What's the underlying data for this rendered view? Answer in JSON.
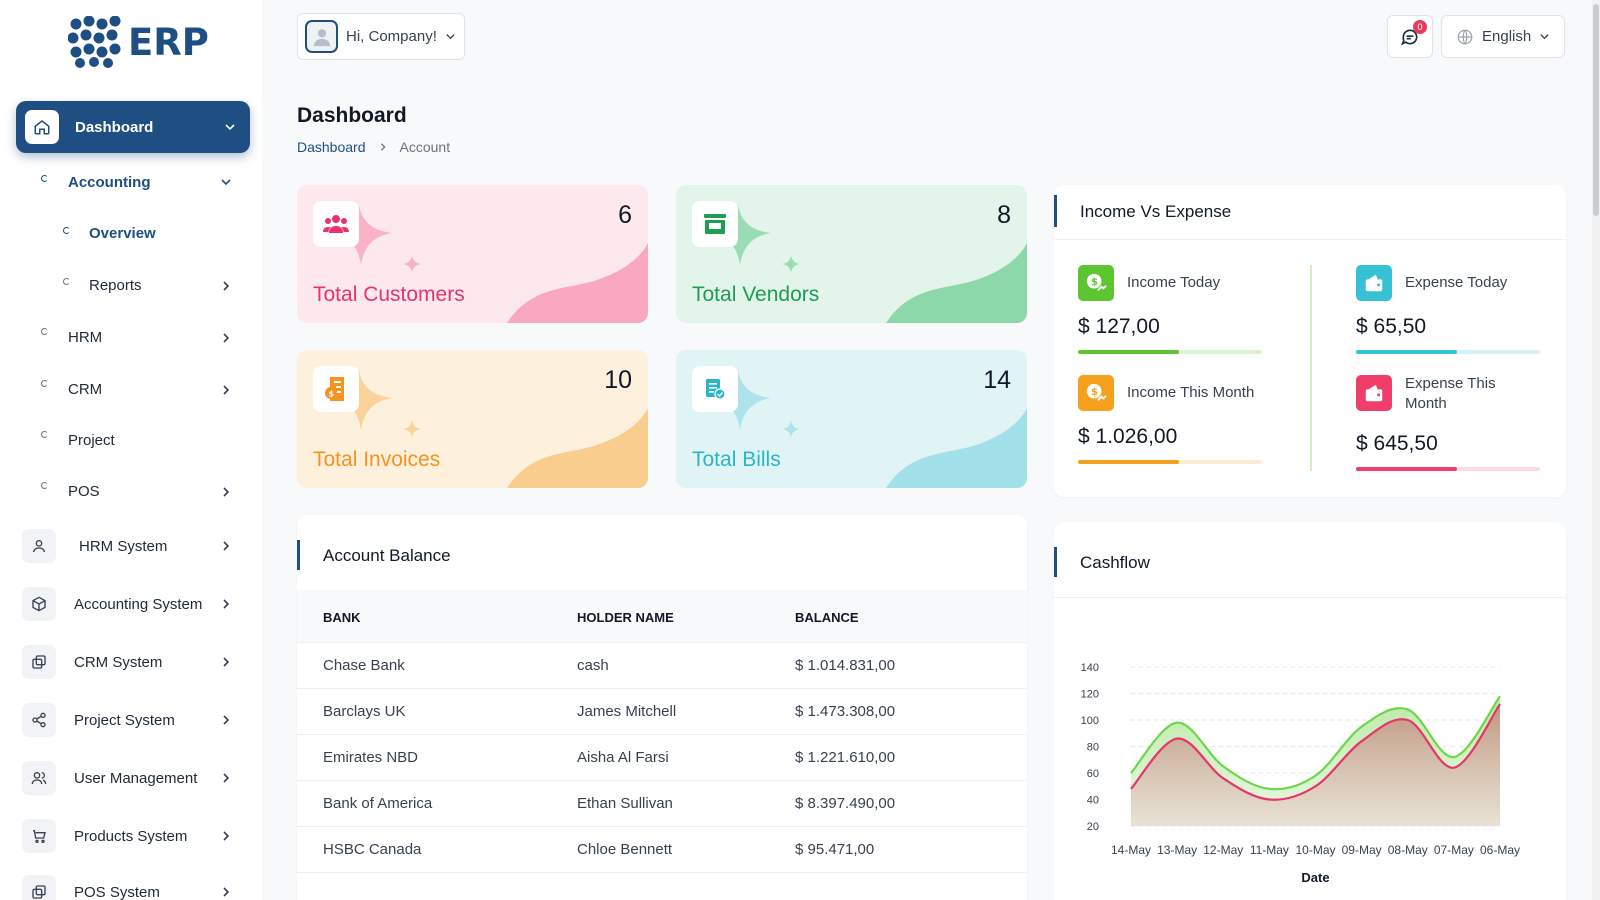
{
  "app": {
    "logo_text": "ERP"
  },
  "sidebar": {
    "active": {
      "label": "Dashboard"
    },
    "sub_items": [
      {
        "label": "Accounting",
        "level": 1,
        "has_chevron": "down"
      },
      {
        "label": "Overview",
        "level": 2
      },
      {
        "label": "Reports",
        "level": 2,
        "has_chevron": "right"
      },
      {
        "label": "HRM",
        "level": 1,
        "has_chevron": "right"
      },
      {
        "label": "CRM",
        "level": 1,
        "has_chevron": "right"
      },
      {
        "label": "Project",
        "level": 1
      },
      {
        "label": "POS",
        "level": 1,
        "has_chevron": "right"
      }
    ],
    "systems": [
      {
        "label": "HRM System",
        "icon": "user-icon"
      },
      {
        "label": "Accounting System",
        "icon": "box-icon"
      },
      {
        "label": "CRM System",
        "icon": "copy-icon"
      },
      {
        "label": "Project System",
        "icon": "share-icon"
      },
      {
        "label": "User Management",
        "icon": "users-icon"
      },
      {
        "label": "Products System",
        "icon": "cart-icon"
      },
      {
        "label": "POS System",
        "icon": "copy-icon"
      }
    ]
  },
  "topbar": {
    "greeting": "Hi, Company!",
    "notification_count": "0",
    "language": "English"
  },
  "page": {
    "title": "Dashboard",
    "breadcrumb": [
      "Dashboard",
      "Account"
    ]
  },
  "stats": [
    {
      "label": "Total Customers",
      "value": "6",
      "color": "#e8336b",
      "bg": "#fde8ee",
      "wave": "#f9a8c0",
      "icon": "customers-icon"
    },
    {
      "label": "Total Vendors",
      "value": "8",
      "color": "#1f9d55",
      "bg": "#e3f4ea",
      "wave": "#8dd8aa",
      "icon": "store-icon"
    },
    {
      "label": "Total Invoices",
      "value": "10",
      "color": "#f6921e",
      "bg": "#fdf0dd",
      "wave": "#f9cd8e",
      "icon": "invoice-icon"
    },
    {
      "label": "Total Bills",
      "value": "14",
      "color": "#2bb5c6",
      "bg": "#e0f4f6",
      "wave": "#a3e1ea",
      "icon": "bill-icon"
    }
  ],
  "income_expense": {
    "title": "Income Vs Expense",
    "items": [
      {
        "label": "Income Today",
        "value": "$ 127,00",
        "color": "#5cc531",
        "track": "#dff2d6",
        "progress": 0.55
      },
      {
        "label": "Expense Today",
        "value": "$ 65,50",
        "color": "#36c2d4",
        "track": "#d9f1f5",
        "progress": 0.55
      },
      {
        "label": "Income This Month",
        "value": "$ 1.026,00",
        "color": "#f6a11e",
        "track": "#fdecd3",
        "progress": 0.55
      },
      {
        "label": "Expense This Month",
        "value": "$ 645,50",
        "color": "#ef3e6a",
        "track": "#fbdbe3",
        "progress": 0.55
      }
    ]
  },
  "account_balance": {
    "title": "Account Balance",
    "columns": [
      "BANK",
      "HOLDER NAME",
      "BALANCE"
    ],
    "rows": [
      [
        "Chase Bank",
        "cash",
        "$ 1.014.831,00"
      ],
      [
        "Barclays UK",
        "James Mitchell",
        "$ 1.473.308,00"
      ],
      [
        "Emirates NBD",
        "Aisha Al Farsi",
        "$ 1.221.610,00"
      ],
      [
        "Bank of America",
        "Ethan Sullivan",
        "$ 8.397.490,00"
      ],
      [
        "HSBC Canada",
        "Chloe Bennett",
        "$ 95.471,00"
      ]
    ]
  },
  "cashflow": {
    "title": "Cashflow",
    "chart_data": {
      "type": "area",
      "x": [
        "14-May",
        "13-May",
        "12-May",
        "11-May",
        "10-May",
        "09-May",
        "08-May",
        "07-May",
        "06-May"
      ],
      "xlabel": "Date",
      "ylabel": "",
      "ylim": [
        20,
        140
      ],
      "yticks": [
        20,
        40,
        60,
        80,
        100,
        120,
        140
      ],
      "grid": true,
      "series": [
        {
          "values": [
            60,
            98,
            65,
            48,
            58,
            95,
            108,
            72,
            118
          ],
          "color": "#6fd64b"
        },
        {
          "values": [
            48,
            86,
            56,
            40,
            50,
            84,
            100,
            64,
            112
          ],
          "color": "#e8336b"
        }
      ]
    }
  }
}
